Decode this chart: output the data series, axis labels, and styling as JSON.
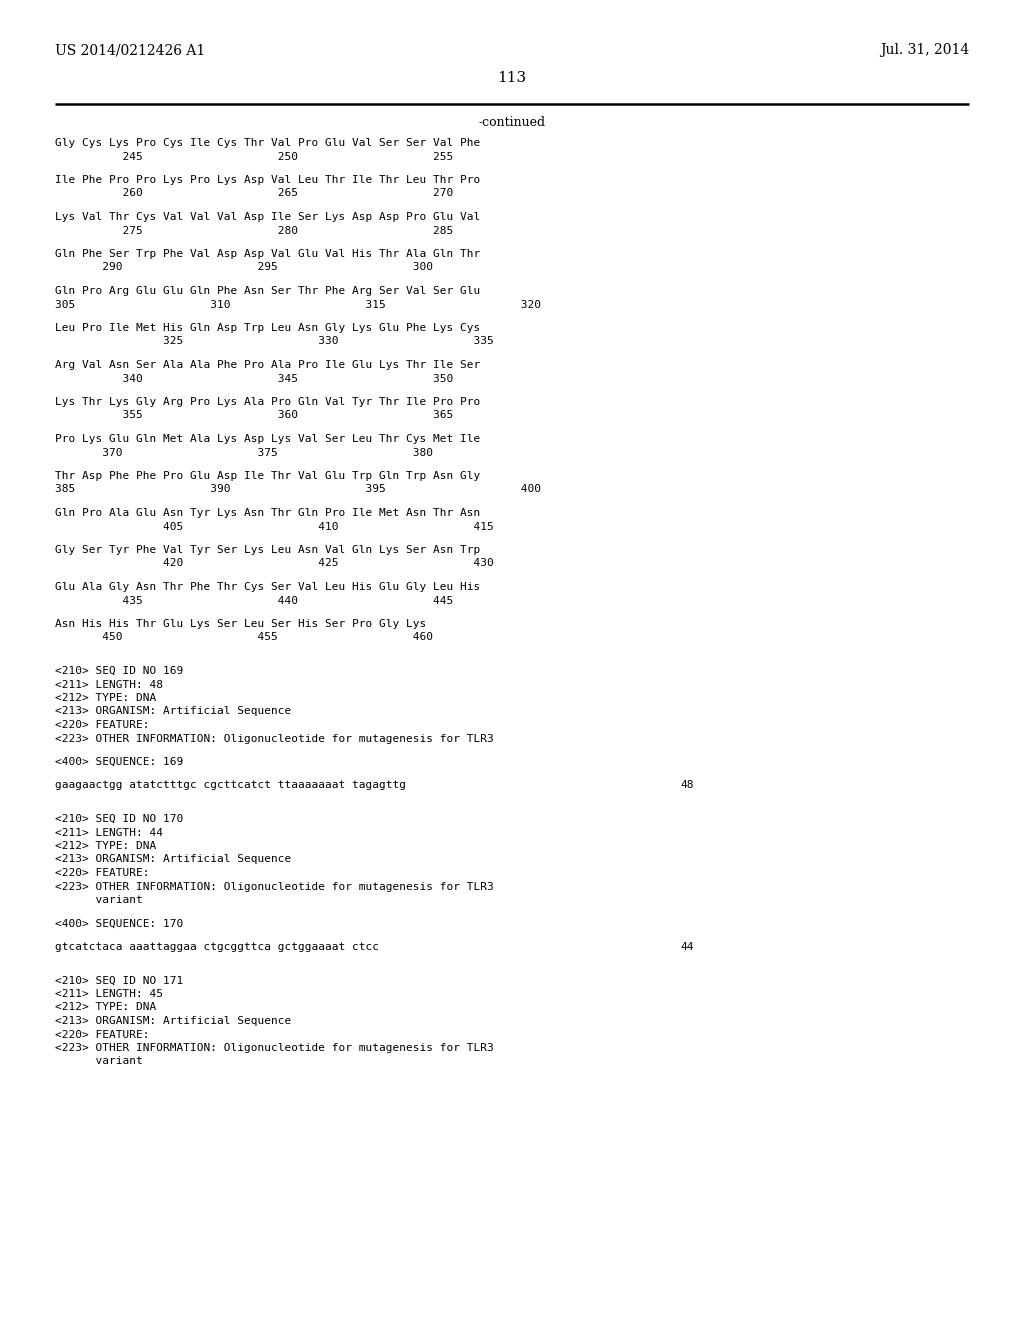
{
  "page_number": "113",
  "patent_left": "US 2014/0212426 A1",
  "patent_right": "Jul. 31, 2014",
  "continued_label": "-continued",
  "background_color": "#ffffff",
  "text_color": "#000000",
  "font_size": 8.0,
  "lines": [
    {
      "type": "aa_seq",
      "seq": "Gly Cys Lys Pro Cys Ile Cys Thr Val Pro Glu Val Ser Ser Val Phe",
      "nums": "          245                    250                    255"
    },
    {
      "type": "aa_seq",
      "seq": "Ile Phe Pro Pro Lys Pro Lys Asp Val Leu Thr Ile Thr Leu Thr Pro",
      "nums": "          260                    265                    270"
    },
    {
      "type": "aa_seq",
      "seq": "Lys Val Thr Cys Val Val Val Asp Ile Ser Lys Asp Asp Pro Glu Val",
      "nums": "          275                    280                    285"
    },
    {
      "type": "aa_seq",
      "seq": "Gln Phe Ser Trp Phe Val Asp Asp Val Glu Val His Thr Ala Gln Thr",
      "nums": "       290                    295                    300"
    },
    {
      "type": "aa_seq",
      "seq": "Gln Pro Arg Glu Glu Gln Phe Asn Ser Thr Phe Arg Ser Val Ser Glu",
      "nums": "305                    310                    315                    320"
    },
    {
      "type": "aa_seq",
      "seq": "Leu Pro Ile Met His Gln Asp Trp Leu Asn Gly Lys Glu Phe Lys Cys",
      "nums": "                325                    330                    335"
    },
    {
      "type": "aa_seq",
      "seq": "Arg Val Asn Ser Ala Ala Phe Pro Ala Pro Ile Glu Lys Thr Ile Ser",
      "nums": "          340                    345                    350"
    },
    {
      "type": "aa_seq",
      "seq": "Lys Thr Lys Gly Arg Pro Lys Ala Pro Gln Val Tyr Thr Ile Pro Pro",
      "nums": "          355                    360                    365"
    },
    {
      "type": "aa_seq",
      "seq": "Pro Lys Glu Gln Met Ala Lys Asp Lys Val Ser Leu Thr Cys Met Ile",
      "nums": "       370                    375                    380"
    },
    {
      "type": "aa_seq",
      "seq": "Thr Asp Phe Phe Pro Glu Asp Ile Thr Val Glu Trp Gln Trp Asn Gly",
      "nums": "385                    390                    395                    400"
    },
    {
      "type": "aa_seq",
      "seq": "Gln Pro Ala Glu Asn Tyr Lys Asn Thr Gln Pro Ile Met Asn Thr Asn",
      "nums": "                405                    410                    415"
    },
    {
      "type": "aa_seq",
      "seq": "Gly Ser Tyr Phe Val Tyr Ser Lys Leu Asn Val Gln Lys Ser Asn Trp",
      "nums": "                420                    425                    430"
    },
    {
      "type": "aa_seq",
      "seq": "Glu Ala Gly Asn Thr Phe Thr Cys Ser Val Leu His Glu Gly Leu His",
      "nums": "          435                    440                    445"
    },
    {
      "type": "aa_seq",
      "seq": "Asn His His Thr Glu Lys Ser Leu Ser His Ser Pro Gly Lys",
      "nums": "       450                    455                    460"
    },
    {
      "type": "gap"
    },
    {
      "type": "meta",
      "text": "<210> SEQ ID NO 169"
    },
    {
      "type": "meta",
      "text": "<211> LENGTH: 48"
    },
    {
      "type": "meta",
      "text": "<212> TYPE: DNA"
    },
    {
      "type": "meta",
      "text": "<213> ORGANISM: Artificial Sequence"
    },
    {
      "type": "meta",
      "text": "<220> FEATURE:"
    },
    {
      "type": "meta",
      "text": "<223> OTHER INFORMATION: Oligonucleotide for mutagenesis for TLR3"
    },
    {
      "type": "gap"
    },
    {
      "type": "meta",
      "text": "<400> SEQUENCE: 169"
    },
    {
      "type": "gap"
    },
    {
      "type": "dna_seq",
      "seq": "gaagaactgg atatctttgc cgcttcatct ttaaaaaaat tagagttg",
      "num": "48"
    },
    {
      "type": "gap"
    },
    {
      "type": "gap"
    },
    {
      "type": "meta",
      "text": "<210> SEQ ID NO 170"
    },
    {
      "type": "meta",
      "text": "<211> LENGTH: 44"
    },
    {
      "type": "meta",
      "text": "<212> TYPE: DNA"
    },
    {
      "type": "meta",
      "text": "<213> ORGANISM: Artificial Sequence"
    },
    {
      "type": "meta",
      "text": "<220> FEATURE:"
    },
    {
      "type": "meta",
      "text": "<223> OTHER INFORMATION: Oligonucleotide for mutagenesis for TLR3"
    },
    {
      "type": "meta",
      "text": "      variant"
    },
    {
      "type": "gap"
    },
    {
      "type": "meta",
      "text": "<400> SEQUENCE: 170"
    },
    {
      "type": "gap"
    },
    {
      "type": "dna_seq",
      "seq": "gtcatctaca aaattaggaa ctgcggttca gctggaaaat ctcc",
      "num": "44"
    },
    {
      "type": "gap"
    },
    {
      "type": "gap"
    },
    {
      "type": "meta",
      "text": "<210> SEQ ID NO 171"
    },
    {
      "type": "meta",
      "text": "<211> LENGTH: 45"
    },
    {
      "type": "meta",
      "text": "<212> TYPE: DNA"
    },
    {
      "type": "meta",
      "text": "<213> ORGANISM: Artificial Sequence"
    },
    {
      "type": "meta",
      "text": "<220> FEATURE:"
    },
    {
      "type": "meta",
      "text": "<223> OTHER INFORMATION: Oligonucleotide for mutagenesis for TLR3"
    },
    {
      "type": "meta",
      "text": "      variant"
    }
  ]
}
